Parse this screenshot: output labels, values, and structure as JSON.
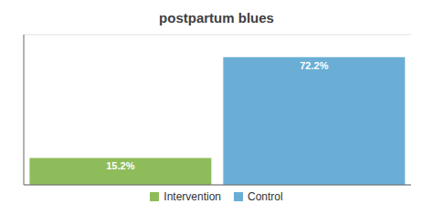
{
  "chart_data": {
    "type": "bar",
    "title": "postpartum blues",
    "categories": [
      "Intervention",
      "Control"
    ],
    "values": [
      15.2,
      72.2
    ],
    "value_labels": [
      "15.2%",
      "72.2%"
    ],
    "data_labels": true,
    "colors": [
      "#8fbc5a",
      "#6aaed6"
    ],
    "ylim": [
      0,
      85
    ],
    "yticks": [
      0,
      20,
      40,
      60,
      80
    ],
    "grid": true,
    "tick_labels": false,
    "legend": "bottom"
  }
}
